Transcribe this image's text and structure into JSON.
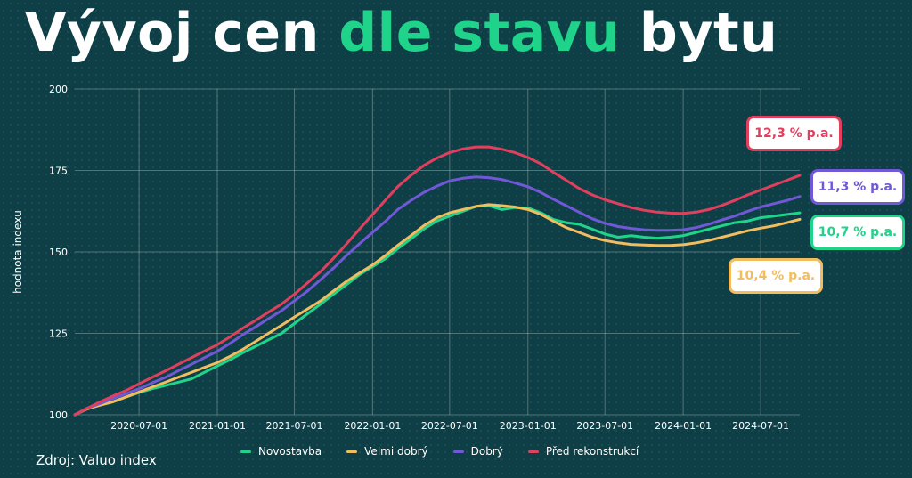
{
  "title": {
    "part1": "Vývoj cen",
    "accent": "dle stavu",
    "part2": "bytu"
  },
  "source": "Zdroj: Valuo index",
  "colors": {
    "background": "#0f3f46",
    "accent": "#1fd48a",
    "Novostavba": "#1fd48a",
    "Velmi dobrý": "#f2bd5f",
    "Dobrý": "#7058d6",
    "Před rekonstrukcí": "#e0405e"
  },
  "annotations": [
    {
      "text": "12,3 % p.a.",
      "series": "Před rekonstrukcí"
    },
    {
      "text": "11,3 % p.a.",
      "series": "Dobrý"
    },
    {
      "text": "10,7 % p.a.",
      "series": "Novostavba"
    },
    {
      "text": "10,4 % p.a.",
      "series": "Velmi dobrý"
    }
  ],
  "chart_data": {
    "type": "line",
    "ylabel": "hodnota indexu",
    "xlabel": "",
    "ylim": [
      100,
      200
    ],
    "yticks": [
      100,
      125,
      150,
      175,
      200
    ],
    "xticks": [
      "2020-07-01",
      "2021-01-01",
      "2021-07-01",
      "2022-01-01",
      "2022-07-01",
      "2023-01-01",
      "2023-07-01",
      "2024-01-01",
      "2024-07-01"
    ],
    "grid": true,
    "legend_position": "bottom",
    "x": [
      "2020-02-01",
      "2020-03-01",
      "2020-04-01",
      "2020-05-01",
      "2020-06-01",
      "2020-07-01",
      "2020-08-01",
      "2020-09-01",
      "2020-10-01",
      "2020-11-01",
      "2020-12-01",
      "2021-01-01",
      "2021-02-01",
      "2021-03-01",
      "2021-04-01",
      "2021-05-01",
      "2021-06-01",
      "2021-07-01",
      "2021-08-01",
      "2021-09-01",
      "2021-10-01",
      "2021-11-01",
      "2021-12-01",
      "2022-01-01",
      "2022-02-01",
      "2022-03-01",
      "2022-04-01",
      "2022-05-01",
      "2022-06-01",
      "2022-07-01",
      "2022-08-01",
      "2022-09-01",
      "2022-10-01",
      "2022-11-01",
      "2022-12-01",
      "2023-01-01",
      "2023-02-01",
      "2023-03-01",
      "2023-04-01",
      "2023-05-01",
      "2023-06-01",
      "2023-07-01",
      "2023-08-01",
      "2023-09-01",
      "2023-10-01",
      "2023-11-01",
      "2023-12-01",
      "2024-01-01",
      "2024-02-01",
      "2024-03-01",
      "2024-04-01",
      "2024-05-01",
      "2024-06-01",
      "2024-07-01",
      "2024-08-01",
      "2024-09-01",
      "2024-10-01"
    ],
    "series": [
      {
        "name": "Novostavba",
        "values": [
          100,
          102,
          103,
          104,
          105.5,
          106.8,
          108,
          109,
          110,
          111,
          113,
          115,
          117,
          119,
          121,
          123,
          125,
          128,
          131,
          134,
          137,
          140,
          143,
          145.5,
          148,
          151,
          154,
          157,
          159.5,
          161,
          162.5,
          164,
          164.2,
          163,
          163.6,
          163.5,
          162,
          160,
          159,
          158.5,
          157,
          155.5,
          154.5,
          155,
          154.5,
          154.2,
          154.5,
          155,
          156,
          157,
          158,
          159,
          159.5,
          160.5,
          161,
          161.5,
          162
        ]
      },
      {
        "name": "Velmi dobrý",
        "values": [
          100,
          101.8,
          103,
          104,
          105.5,
          107,
          108.5,
          110,
          111.5,
          113,
          114.5,
          116,
          118,
          120,
          122.5,
          125,
          127.5,
          130,
          132.5,
          135,
          138,
          141,
          143.5,
          146,
          149,
          152,
          155,
          158,
          160.5,
          162,
          163,
          164,
          164.5,
          164.2,
          163.8,
          163,
          161.5,
          159.5,
          157.5,
          156,
          154.5,
          153.5,
          152.8,
          152.3,
          152.1,
          152,
          152,
          152.2,
          152.8,
          153.5,
          154.5,
          155.5,
          156.5,
          157.3,
          158,
          159,
          160
        ]
      },
      {
        "name": "Dobrý",
        "values": [
          100,
          102,
          103.5,
          105,
          106.5,
          108,
          109.8,
          111.5,
          113.5,
          115.5,
          117.5,
          119.5,
          122,
          124.5,
          127,
          129.5,
          132,
          135,
          138,
          141.5,
          145,
          149,
          152.5,
          156,
          159.5,
          163,
          165.8,
          168.2,
          170.2,
          171.8,
          172.6,
          173,
          172.8,
          172.2,
          171.2,
          170,
          168.2,
          166.2,
          164.2,
          162.2,
          160.2,
          158.8,
          157.8,
          157.2,
          156.8,
          156.6,
          156.6,
          156.8,
          157.5,
          158.5,
          159.8,
          161,
          162.5,
          163.8,
          164.8,
          165.8,
          167
        ]
      },
      {
        "name": "Před rekonstrukcí",
        "values": [
          100,
          102,
          104,
          105.8,
          107.5,
          109.5,
          111.5,
          113.5,
          115.5,
          117.5,
          119.5,
          121.5,
          124,
          126.5,
          129,
          131.5,
          134,
          137,
          140.5,
          144,
          148,
          152.5,
          157,
          161.5,
          166,
          170,
          173.5,
          176.5,
          178.8,
          180.5,
          181.6,
          182.2,
          182.2,
          181.5,
          180.5,
          179,
          177,
          174.5,
          172,
          169.5,
          167.5,
          166,
          164.8,
          163.6,
          162.8,
          162.2,
          161.9,
          161.8,
          162.2,
          163,
          164.3,
          165.8,
          167.5,
          169,
          170.5,
          172,
          173.5
        ]
      }
    ]
  }
}
